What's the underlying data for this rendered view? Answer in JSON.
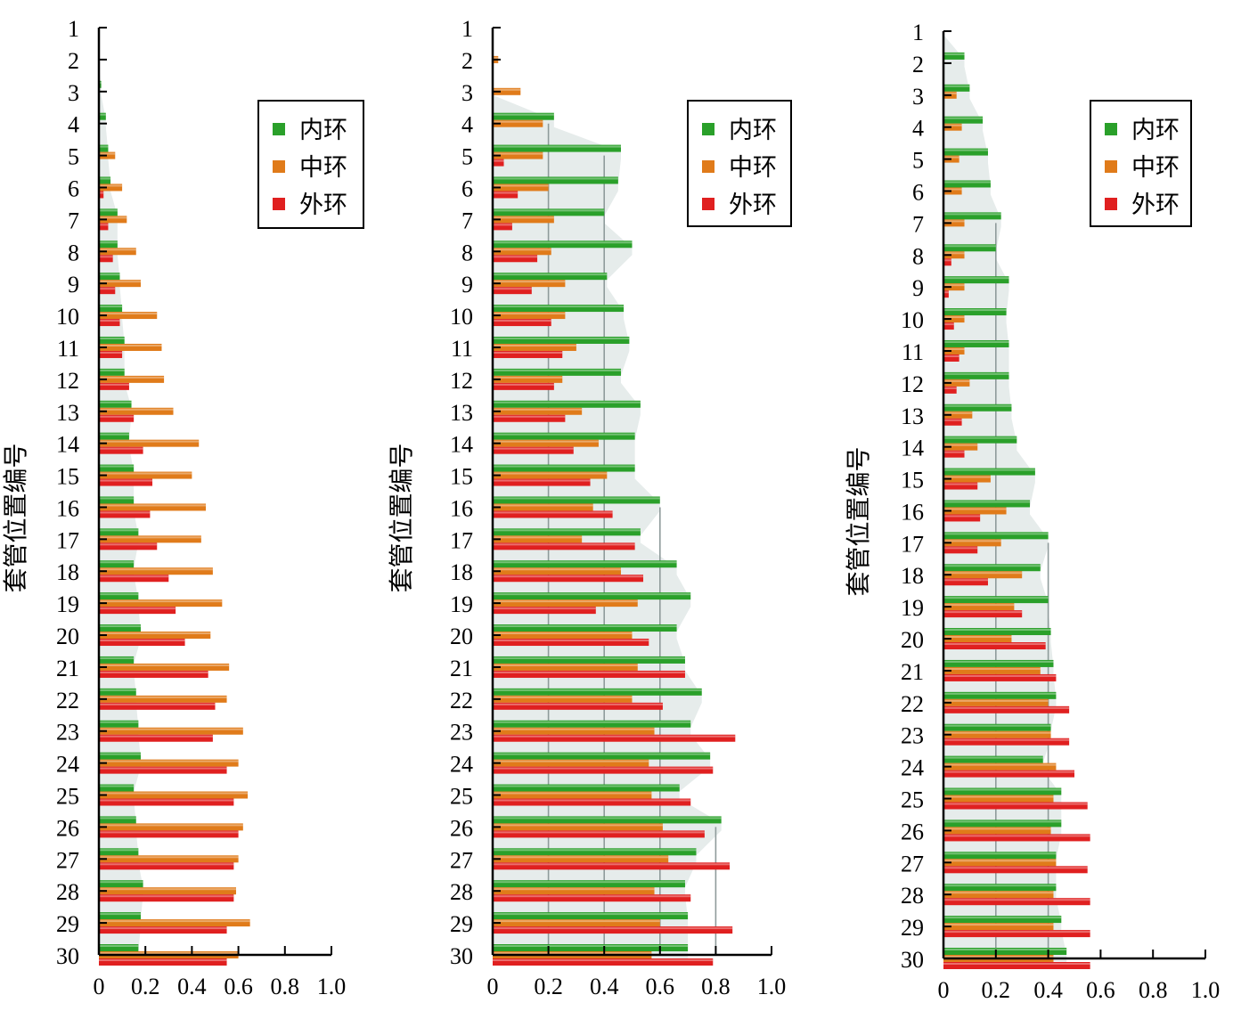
{
  "ylabel": "套管位置编号",
  "legend_labels": [
    "内环",
    "中环",
    "外环"
  ],
  "colors": {
    "inner": "#2aa02a",
    "middle": "#e07b1a",
    "outer": "#e02020",
    "fill": "#e6eceb",
    "grid": "#8f9b9b"
  },
  "chart_data": [
    {
      "type": "bar",
      "orientation": "horizontal",
      "categories": [
        "1",
        "2",
        "3",
        "4",
        "5",
        "6",
        "7",
        "8",
        "9",
        "10",
        "11",
        "12",
        "13",
        "14",
        "15",
        "16",
        "17",
        "18",
        "19",
        "20",
        "21",
        "22",
        "23",
        "24",
        "25",
        "26",
        "27",
        "28",
        "29",
        "30"
      ],
      "x_ticks": [
        "0",
        "0.2",
        "0.4",
        "0.6",
        "0.8",
        "1.0"
      ],
      "xlim": [
        0,
        1.0
      ],
      "legend_position": "top-right",
      "series": [
        {
          "name": "内环",
          "values": [
            0,
            0,
            0.01,
            0.03,
            0.04,
            0.05,
            0.08,
            0.08,
            0.09,
            0.1,
            0.11,
            0.11,
            0.14,
            0.13,
            0.15,
            0.15,
            0.17,
            0.15,
            0.17,
            0.18,
            0.15,
            0.16,
            0.17,
            0.18,
            0.15,
            0.16,
            0.17,
            0.19,
            0.18,
            0.17
          ]
        },
        {
          "name": "中环",
          "values": [
            0,
            0,
            0,
            0,
            0.07,
            0.1,
            0.12,
            0.16,
            0.18,
            0.25,
            0.27,
            0.28,
            0.32,
            0.43,
            0.4,
            0.46,
            0.44,
            0.49,
            0.53,
            0.48,
            0.56,
            0.55,
            0.62,
            0.6,
            0.64,
            0.62,
            0.6,
            0.59,
            0.65,
            0.6
          ]
        },
        {
          "name": "外环",
          "values": [
            0,
            0,
            0,
            0,
            0,
            0.02,
            0.04,
            0.06,
            0.07,
            0.09,
            0.1,
            0.13,
            0.15,
            0.19,
            0.23,
            0.22,
            0.25,
            0.3,
            0.33,
            0.37,
            0.47,
            0.5,
            0.49,
            0.55,
            0.58,
            0.6,
            0.58,
            0.58,
            0.55,
            0.55
          ]
        }
      ]
    },
    {
      "type": "bar",
      "orientation": "horizontal",
      "categories": [
        "1",
        "2",
        "3",
        "4",
        "5",
        "6",
        "7",
        "8",
        "9",
        "10",
        "11",
        "12",
        "13",
        "14",
        "15",
        "16",
        "17",
        "18",
        "19",
        "20",
        "21",
        "22",
        "23",
        "24",
        "25",
        "26",
        "27",
        "28",
        "29",
        "30"
      ],
      "x_ticks": [
        "0",
        "0.2",
        "0.4",
        "0.6",
        "0.8",
        "1.0"
      ],
      "xlim": [
        0,
        1.0
      ],
      "legend_position": "top-right",
      "series": [
        {
          "name": "内环",
          "values": [
            0,
            0,
            0,
            0.22,
            0.46,
            0.45,
            0.4,
            0.5,
            0.41,
            0.47,
            0.49,
            0.46,
            0.53,
            0.51,
            0.51,
            0.6,
            0.53,
            0.66,
            0.71,
            0.66,
            0.69,
            0.75,
            0.71,
            0.78,
            0.67,
            0.82,
            0.73,
            0.69,
            0.7,
            0.7
          ]
        },
        {
          "name": "中环",
          "values": [
            0,
            0.02,
            0.1,
            0.18,
            0.18,
            0.2,
            0.22,
            0.21,
            0.26,
            0.26,
            0.3,
            0.25,
            0.32,
            0.38,
            0.41,
            0.36,
            0.32,
            0.46,
            0.52,
            0.5,
            0.52,
            0.5,
            0.58,
            0.56,
            0.57,
            0.61,
            0.63,
            0.58,
            0.6,
            0.57
          ]
        },
        {
          "name": "外环",
          "values": [
            0,
            0,
            0,
            0,
            0.04,
            0.09,
            0.07,
            0.16,
            0.14,
            0.21,
            0.25,
            0.22,
            0.26,
            0.29,
            0.35,
            0.43,
            0.51,
            0.54,
            0.37,
            0.56,
            0.69,
            0.61,
            0.87,
            0.79,
            0.71,
            0.76,
            0.85,
            0.71,
            0.86,
            0.79
          ]
        }
      ]
    },
    {
      "type": "bar",
      "orientation": "horizontal",
      "categories": [
        "1",
        "2",
        "3",
        "4",
        "5",
        "6",
        "7",
        "8",
        "9",
        "10",
        "11",
        "12",
        "13",
        "14",
        "15",
        "16",
        "17",
        "18",
        "19",
        "20",
        "21",
        "22",
        "23",
        "24",
        "25",
        "26",
        "27",
        "28",
        "29",
        "30"
      ],
      "x_ticks": [
        "0",
        "0.2",
        "0.4",
        "0.6",
        "0.8",
        "1.0"
      ],
      "xlim": [
        0,
        1.0
      ],
      "legend_position": "top-right",
      "series": [
        {
          "name": "内环",
          "values": [
            0,
            0.08,
            0.1,
            0.15,
            0.17,
            0.18,
            0.22,
            0.2,
            0.25,
            0.24,
            0.25,
            0.25,
            0.26,
            0.28,
            0.35,
            0.33,
            0.4,
            0.37,
            0.4,
            0.41,
            0.42,
            0.43,
            0.41,
            0.38,
            0.45,
            0.45,
            0.43,
            0.43,
            0.45,
            0.47
          ]
        },
        {
          "name": "中环",
          "values": [
            0,
            0,
            0.05,
            0.07,
            0.06,
            0.07,
            0.08,
            0.08,
            0.08,
            0.08,
            0.08,
            0.1,
            0.11,
            0.13,
            0.18,
            0.24,
            0.22,
            0.3,
            0.27,
            0.26,
            0.37,
            0.4,
            0.41,
            0.43,
            0.42,
            0.41,
            0.43,
            0.42,
            0.42,
            0.42
          ]
        },
        {
          "name": "外环",
          "values": [
            0,
            0,
            0,
            0,
            0,
            0,
            0,
            0.03,
            0.02,
            0.04,
            0.06,
            0.05,
            0.07,
            0.08,
            0.13,
            0.14,
            0.13,
            0.17,
            0.3,
            0.39,
            0.43,
            0.48,
            0.48,
            0.5,
            0.55,
            0.56,
            0.55,
            0.56,
            0.56,
            0.56
          ]
        }
      ]
    }
  ]
}
